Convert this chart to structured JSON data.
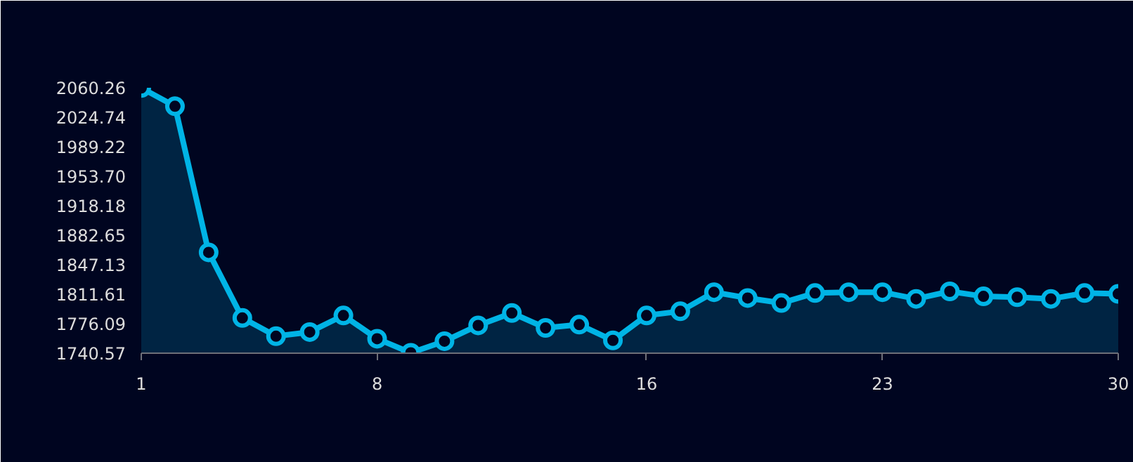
{
  "chart_data": {
    "type": "area",
    "x": [
      1,
      2,
      3,
      4,
      5,
      6,
      7,
      8,
      9,
      10,
      11,
      12,
      13,
      14,
      15,
      16,
      17,
      18,
      19,
      20,
      21,
      22,
      23,
      24,
      25,
      26,
      27,
      28,
      29,
      30
    ],
    "series": [
      {
        "color": "#00b4e6",
        "values": [
          2060,
          2038,
          1862,
          1783,
          1761,
          1766,
          1786,
          1758,
          1741,
          1755,
          1774,
          1789,
          1771,
          1775,
          1756,
          1786,
          1791,
          1814,
          1807,
          1801,
          1813,
          1814,
          1814,
          1806,
          1815,
          1809,
          1808,
          1806,
          1813,
          1812
        ]
      }
    ],
    "xlim": [
      1,
      30
    ],
    "xticks": [
      1,
      8,
      16,
      23,
      30
    ],
    "ylim": [
      1740.57,
      2060.26
    ],
    "yticks": [
      1740.57,
      1776.09,
      1811.61,
      1847.13,
      1882.65,
      1918.18,
      {
        "value": 1953.7,
        "label": "1953.70"
      },
      1989.22,
      2024.74,
      2060.26
    ],
    "grid": false,
    "marker": "circle",
    "line_style": "solid"
  }
}
